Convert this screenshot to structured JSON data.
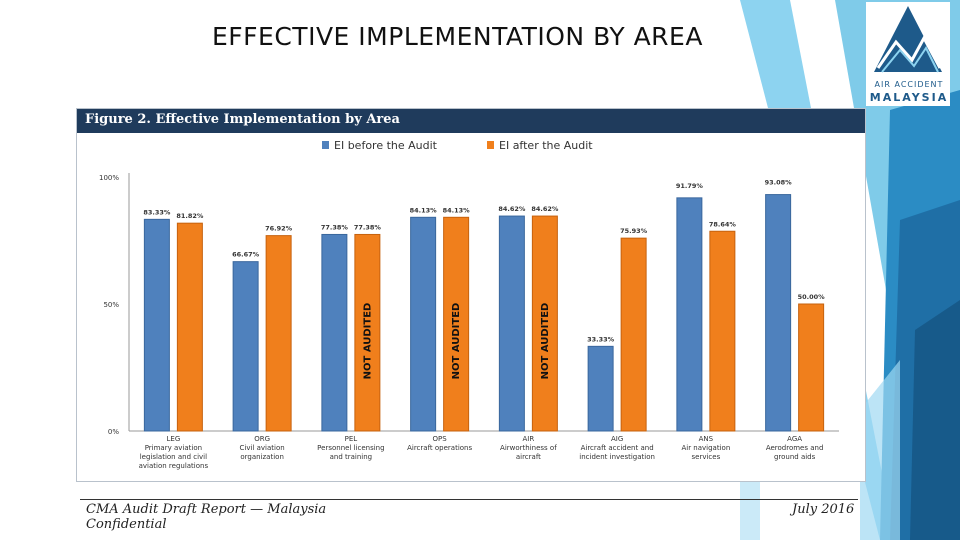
{
  "slide_title": "EFFECTIVE IMPLEMENTATION BY AREA",
  "logo": {
    "line1": "AIR ACCIDENT",
    "line2": "MALAYSIA"
  },
  "colors": {
    "before": "#4f81bd",
    "after": "#f07f1c",
    "header": "#1f3b5c",
    "accent_light": "#8dd3f0",
    "accent_dark": "#1e5a8a"
  },
  "figure_title": "Figure 2. Effective Implementation by Area",
  "chart_data": {
    "type": "bar",
    "title": "Figure 2. Effective Implementation by Area",
    "categories": [
      [
        "LEG",
        "Primary aviation",
        "legislation and civil",
        "aviation regulations"
      ],
      [
        "ORG",
        "Civil aviation",
        "organization"
      ],
      [
        "PEL",
        "Personnel licensing",
        "and training"
      ],
      [
        "OPS",
        "Aircraft operations"
      ],
      [
        "AIR",
        "Airworthiness of",
        "aircraft"
      ],
      [
        "AIG",
        "Aircraft accident and",
        "incident investigation"
      ],
      [
        "ANS",
        "Air navigation",
        "services"
      ],
      [
        "AGA",
        "Aerodromes and",
        "ground aids"
      ]
    ],
    "series": [
      {
        "name": "EI before the Audit",
        "values": [
          83.33,
          66.67,
          77.38,
          84.13,
          84.62,
          33.33,
          91.79,
          93.08
        ],
        "labels": [
          "83.33%",
          "66.67%",
          "77.38%",
          "84.13%",
          "84.62%",
          "33.33%",
          "91.79%",
          "93.08%"
        ]
      },
      {
        "name": "EI after the Audit",
        "values": [
          81.82,
          76.92,
          77.38,
          84.13,
          84.62,
          75.93,
          78.64,
          50.0
        ],
        "labels": [
          "81.82%",
          "76.92%",
          "77.38%",
          "84.13%",
          "84.62%",
          "75.93%",
          "78.64%",
          "50.00%"
        ]
      }
    ],
    "ylim": [
      0,
      100
    ],
    "yticks": [
      "0%",
      "50%",
      "100%"
    ],
    "annotations": [
      {
        "category_index": 2,
        "series_index": 1,
        "text": "NOT AUDITED"
      },
      {
        "category_index": 3,
        "series_index": 1,
        "text": "NOT AUDITED"
      },
      {
        "category_index": 4,
        "series_index": 1,
        "text": "NOT AUDITED"
      }
    ],
    "legend": "top-center",
    "grid": false
  },
  "footer": {
    "left_line1": "CMA Audit Draft Report — Malaysia",
    "left_line2": "Confidential",
    "right": "July 2016"
  }
}
